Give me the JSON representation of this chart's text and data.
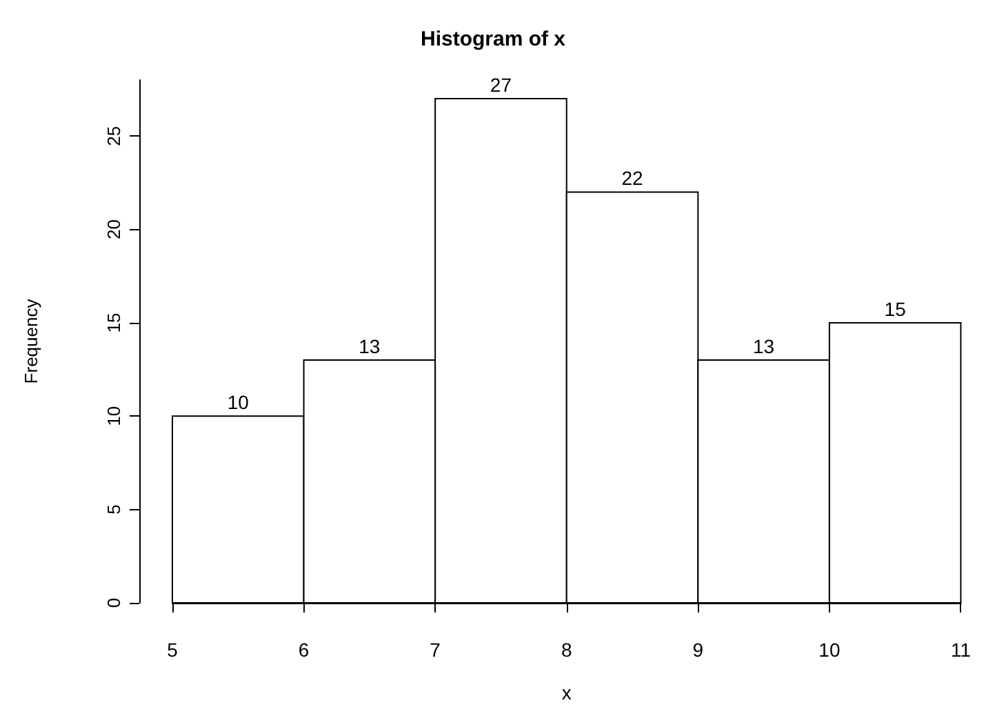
{
  "chart_data": {
    "type": "histogram",
    "title": "Histogram of x",
    "xlabel": "x",
    "ylabel": "Frequency",
    "bins": [
      5,
      6,
      7,
      8,
      9,
      10,
      11
    ],
    "values": [
      10,
      13,
      27,
      22,
      13,
      15
    ],
    "color": "#ffffff",
    "xlim": [
      5,
      11
    ],
    "xticks": [
      5,
      6,
      7,
      8,
      9,
      10,
      11
    ],
    "ylim": [
      0,
      28
    ],
    "yticks": [
      0,
      5,
      10,
      15,
      20,
      25
    ],
    "data_labels": true
  }
}
